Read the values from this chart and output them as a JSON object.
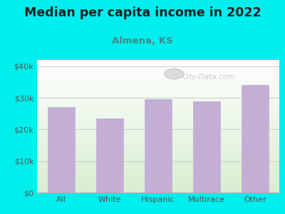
{
  "title": "Median per capita income in 2022",
  "subtitle": "Almena, KS",
  "categories": [
    "All",
    "White",
    "Hispanic",
    "Multirace",
    "Other"
  ],
  "values": [
    27000,
    23500,
    29500,
    29000,
    34000
  ],
  "bar_color": "#C3AED6",
  "background_outer": "#00EEEE",
  "background_inner_bottom": "#D8EED0",
  "background_inner_top": "#FFFFFF",
  "title_fontsize": 12.5,
  "title_color": "#222222",
  "subtitle_fontsize": 9.5,
  "subtitle_color": "#448888",
  "tick_label_fontsize": 8,
  "axis_label_color": "#555555",
  "grid_color": "#cccccc",
  "ytick_labels": [
    "$0",
    "$10k",
    "$20k",
    "$30k",
    "$40k"
  ],
  "ytick_values": [
    0,
    10000,
    20000,
    30000,
    40000
  ],
  "ylim": [
    0,
    42000
  ],
  "watermark": "City-Data.com",
  "watermark_color": "#bbbbbb",
  "bar_width": 0.55
}
